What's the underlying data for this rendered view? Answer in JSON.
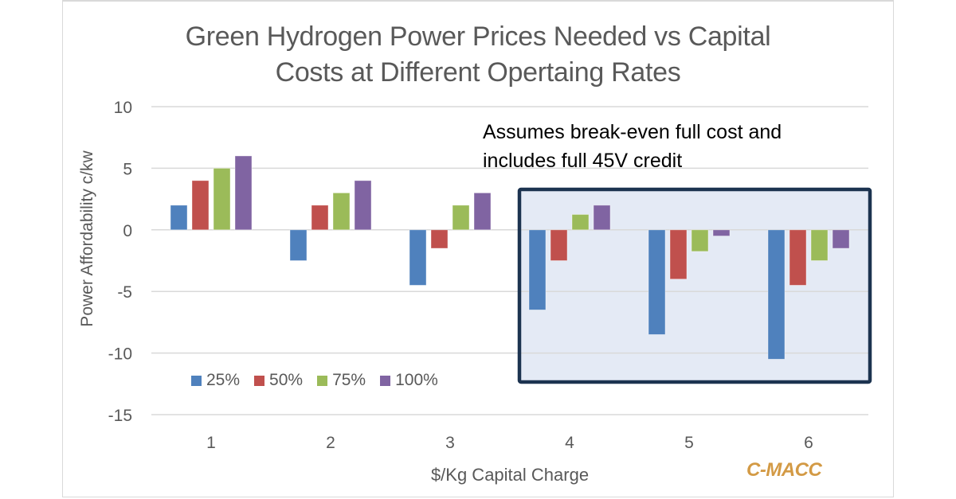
{
  "chart_data": {
    "type": "bar",
    "title": "Green Hydrogen Power Prices Needed vs Capital Costs at Different Opertaing Rates",
    "title_lines": [
      "Green Hydrogen Power Prices Needed vs Capital",
      "Costs at Different Opertaing Rates"
    ],
    "xlabel": "$/Kg Capital Charge",
    "ylabel": "Power Affordability c/kw",
    "categories": [
      "1",
      "2",
      "3",
      "4",
      "5",
      "6"
    ],
    "ylim": [
      -15,
      10
    ],
    "yticks": [
      10,
      5,
      0,
      -5,
      -10,
      -15
    ],
    "grid": true,
    "legend_position": "bottom-left",
    "series": [
      {
        "name": "25%",
        "color": "#4f81bd",
        "values": [
          2,
          -2.5,
          -4.5,
          -6.5,
          -8.5,
          -10.5
        ]
      },
      {
        "name": "50%",
        "color": "#c0504d",
        "values": [
          4,
          2,
          -1.5,
          -2.5,
          -4,
          -4.5
        ]
      },
      {
        "name": "75%",
        "color": "#9bbb59",
        "values": [
          5,
          3,
          2,
          1.25,
          -1.75,
          -2.5
        ]
      },
      {
        "name": "100%",
        "color": "#8064a2",
        "values": [
          6,
          4,
          3,
          2,
          -0.5,
          -1.5
        ]
      }
    ],
    "annotation": {
      "lines": [
        "Assumes break-even full cost and",
        "includes full 45V credit"
      ],
      "highlight_categories": [
        "4",
        "5",
        "6"
      ],
      "highlight_fill": "#e4eaf5",
      "highlight_border": "#1c3350"
    },
    "watermark": "C-MACC"
  }
}
